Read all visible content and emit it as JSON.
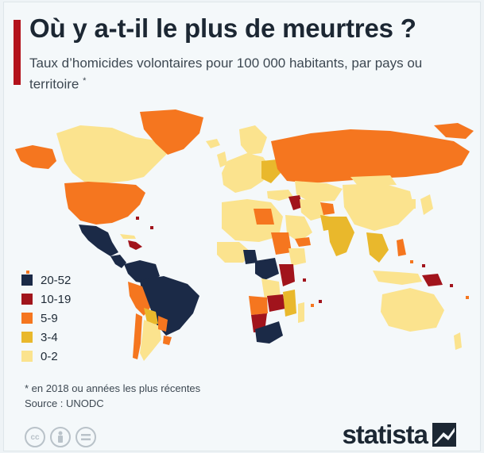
{
  "header": {
    "title": "Où y a-t-il le plus de meurtres ?",
    "subtitle": "Taux d’homicides volontaires pour 100 000 habitants, par pays ou territoire",
    "subtitle_marker": "*"
  },
  "legend": {
    "items": [
      {
        "label": "20-52",
        "color": "#1b2a47"
      },
      {
        "label": "10-19",
        "color": "#a1141c"
      },
      {
        "label": "5-9",
        "color": "#f5761f"
      },
      {
        "label": "3-4",
        "color": "#e9b82c"
      },
      {
        "label": "0-2",
        "color": "#fbe38e"
      }
    ]
  },
  "footer": {
    "footnote": "* en 2018 ou années les plus récentes",
    "source": "Source : UNODC",
    "brand": "statista",
    "cc_icons": [
      "cc-icon",
      "by-icon",
      "nd-icon"
    ]
  }
}
